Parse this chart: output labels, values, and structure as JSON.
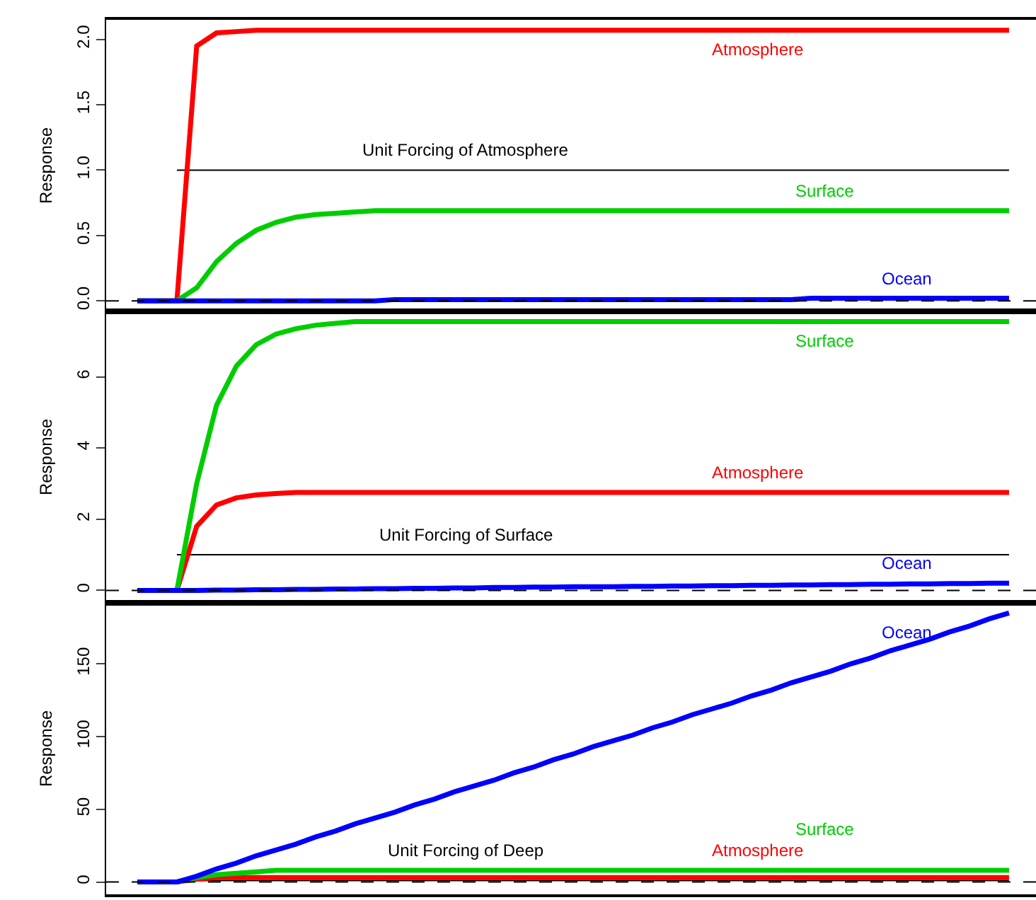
{
  "chart_data": [
    {
      "type": "line",
      "ylabel": "Response",
      "tick_labels": "y",
      "categories": [
        null,
        null,
        null,
        null,
        null,
        null,
        null,
        null,
        null,
        null,
        null,
        null,
        null,
        null,
        null,
        null,
        null,
        null,
        null,
        null,
        null,
        null,
        null,
        null,
        null,
        null,
        null,
        null,
        null,
        null,
        null,
        null,
        null,
        null,
        null,
        null,
        null,
        null,
        null,
        null,
        null,
        null,
        null,
        null,
        null
      ],
      "ylim": [
        -0.08,
        2.15
      ],
      "yticks": [
        {
          "value": 0,
          "label": "0.0"
        },
        {
          "value": 0.5,
          "label": "0.5"
        },
        {
          "value": 1,
          "label": "1.0"
        },
        {
          "value": 1.5,
          "label": "1.5"
        },
        {
          "value": 2,
          "label": "2.0"
        }
      ],
      "ref_lines": [
        {
          "axis": "y",
          "value": 0,
          "line_style": "dashed",
          "color": "#000000"
        }
      ],
      "series": [
        {
          "name": "Unit Forcing of Atmosphere",
          "color": "#000000",
          "values": [
            null,
            null,
            1,
            1,
            1,
            1,
            1,
            1,
            1,
            1,
            1,
            1,
            1,
            1,
            1,
            1,
            1,
            1,
            1,
            1,
            1,
            1,
            1,
            1,
            1,
            1,
            1,
            1,
            1,
            1,
            1,
            1,
            1,
            1,
            1,
            1,
            1,
            1,
            1,
            1,
            1,
            1,
            1,
            1,
            1
          ]
        },
        {
          "name": "Atmosphere",
          "color": "#ff0000",
          "values": [
            0,
            0,
            0,
            1.95,
            2.05,
            2.06,
            2.07,
            2.07,
            2.07,
            2.07,
            2.07,
            2.07,
            2.07,
            2.07,
            2.07,
            2.07,
            2.07,
            2.07,
            2.07,
            2.07,
            2.07,
            2.07,
            2.07,
            2.07,
            2.07,
            2.07,
            2.07,
            2.07,
            2.07,
            2.07,
            2.07,
            2.07,
            2.07,
            2.07,
            2.07,
            2.07,
            2.07,
            2.07,
            2.07,
            2.07,
            2.07,
            2.07,
            2.07,
            2.07,
            2.07
          ]
        },
        {
          "name": "Surface",
          "color": "#00cd00",
          "values": [
            0,
            0,
            0,
            0.1,
            0.3,
            0.44,
            0.54,
            0.6,
            0.64,
            0.66,
            0.67,
            0.68,
            0.69,
            0.69,
            0.69,
            0.69,
            0.69,
            0.69,
            0.69,
            0.69,
            0.69,
            0.69,
            0.69,
            0.69,
            0.69,
            0.69,
            0.69,
            0.69,
            0.69,
            0.69,
            0.69,
            0.69,
            0.69,
            0.69,
            0.69,
            0.69,
            0.69,
            0.69,
            0.69,
            0.69,
            0.69,
            0.69,
            0.69,
            0.69,
            0.69
          ]
        },
        {
          "name": "Ocean",
          "color": "#0000ff",
          "values": [
            0,
            0,
            0,
            0,
            0,
            0,
            0,
            0,
            0,
            0,
            0,
            0,
            0,
            0.01,
            0.01,
            0.01,
            0.01,
            0.01,
            0.01,
            0.01,
            0.01,
            0.01,
            0.01,
            0.01,
            0.01,
            0.01,
            0.01,
            0.01,
            0.01,
            0.01,
            0.01,
            0.01,
            0.01,
            0.01,
            0.02,
            0.02,
            0.02,
            0.02,
            0.02,
            0.02,
            0.02,
            0.02,
            0.02,
            0.02,
            0.02
          ]
        }
      ]
    },
    {
      "type": "line",
      "ylabel": "Response",
      "tick_labels": "y",
      "categories": [
        null,
        null,
        null,
        null,
        null,
        null,
        null,
        null,
        null,
        null,
        null,
        null,
        null,
        null,
        null,
        null,
        null,
        null,
        null,
        null,
        null,
        null,
        null,
        null,
        null,
        null,
        null,
        null,
        null,
        null,
        null,
        null,
        null,
        null,
        null,
        null,
        null,
        null,
        null,
        null,
        null,
        null,
        null,
        null,
        null
      ],
      "ylim": [
        -0.35,
        7.84
      ],
      "yticks": [
        0,
        2,
        4,
        6
      ],
      "ref_lines": [
        {
          "axis": "y",
          "value": 0,
          "line_style": "dashed",
          "color": "#000000"
        }
      ],
      "series": [
        {
          "name": "Unit Forcing of Surface",
          "color": "#000000",
          "values": [
            null,
            null,
            1,
            1,
            1,
            1,
            1,
            1,
            1,
            1,
            1,
            1,
            1,
            1,
            1,
            1,
            1,
            1,
            1,
            1,
            1,
            1,
            1,
            1,
            1,
            1,
            1,
            1,
            1,
            1,
            1,
            1,
            1,
            1,
            1,
            1,
            1,
            1,
            1,
            1,
            1,
            1,
            1,
            1,
            1
          ]
        },
        {
          "name": "Atmosphere",
          "color": "#ff0000",
          "values": [
            0,
            0,
            0,
            1.8,
            2.4,
            2.6,
            2.68,
            2.72,
            2.75,
            2.75,
            2.75,
            2.75,
            2.75,
            2.75,
            2.75,
            2.75,
            2.75,
            2.75,
            2.75,
            2.75,
            2.75,
            2.75,
            2.75,
            2.75,
            2.75,
            2.75,
            2.75,
            2.75,
            2.75,
            2.75,
            2.75,
            2.75,
            2.75,
            2.75,
            2.75,
            2.75,
            2.75,
            2.75,
            2.75,
            2.75,
            2.75,
            2.75,
            2.75,
            2.75,
            2.75
          ]
        },
        {
          "name": "Surface",
          "color": "#00cd00",
          "values": [
            0,
            0,
            0,
            3,
            5.2,
            6.3,
            6.9,
            7.2,
            7.35,
            7.45,
            7.5,
            7.55,
            7.55,
            7.55,
            7.55,
            7.55,
            7.55,
            7.55,
            7.55,
            7.55,
            7.55,
            7.55,
            7.55,
            7.55,
            7.55,
            7.55,
            7.55,
            7.55,
            7.55,
            7.55,
            7.55,
            7.55,
            7.55,
            7.55,
            7.55,
            7.55,
            7.55,
            7.55,
            7.55,
            7.55,
            7.55,
            7.55,
            7.55,
            7.55,
            7.55
          ]
        },
        {
          "name": "Ocean",
          "color": "#0000ff",
          "values": [
            0,
            0,
            0,
            0,
            0.01,
            0.01,
            0.02,
            0.02,
            0.03,
            0.03,
            0.04,
            0.04,
            0.05,
            0.05,
            0.06,
            0.06,
            0.07,
            0.07,
            0.08,
            0.08,
            0.09,
            0.09,
            0.1,
            0.1,
            0.1,
            0.11,
            0.11,
            0.12,
            0.12,
            0.13,
            0.13,
            0.14,
            0.14,
            0.15,
            0.15,
            0.16,
            0.16,
            0.17,
            0.17,
            0.18,
            0.18,
            0.19,
            0.19,
            0.2,
            0.2
          ]
        }
      ]
    },
    {
      "type": "line",
      "ylabel": "Response",
      "tick_labels": "y",
      "categories": [
        null,
        null,
        null,
        null,
        null,
        null,
        null,
        null,
        null,
        null,
        null,
        null,
        null,
        null,
        null,
        null,
        null,
        null,
        null,
        null,
        null,
        null,
        null,
        null,
        null,
        null,
        null,
        null,
        null,
        null,
        null,
        null,
        null,
        null,
        null,
        null,
        null,
        null,
        null,
        null,
        null,
        null,
        null,
        null,
        null
      ],
      "ylim": [
        -8.5,
        192
      ],
      "yticks": [
        0,
        50,
        100,
        150
      ],
      "ref_lines": [
        {
          "axis": "y",
          "value": 0,
          "line_style": "dashed",
          "color": "#000000"
        }
      ],
      "series": [
        {
          "name": "Unit Forcing of Deep",
          "color": "#000000",
          "values": [
            null,
            null,
            1,
            1,
            1,
            1,
            1,
            1,
            1,
            1,
            1,
            1,
            1,
            1,
            1,
            1,
            1,
            1,
            1,
            1,
            1,
            1,
            1,
            1,
            1,
            1,
            1,
            1,
            1,
            1,
            1,
            1,
            1,
            1,
            1,
            1,
            1,
            1,
            1,
            1,
            1,
            1,
            1,
            1,
            1
          ]
        },
        {
          "name": "Atmosphere",
          "color": "#ff0000",
          "values": [
            0,
            0,
            0,
            2,
            3,
            3,
            3,
            3,
            3,
            3,
            3,
            3,
            3,
            3,
            3,
            3,
            3,
            3,
            3,
            3,
            3,
            3,
            3,
            3,
            3,
            3,
            3,
            3,
            3,
            3,
            3,
            3,
            3,
            3,
            3,
            3,
            3,
            3,
            3,
            3,
            3,
            3,
            3,
            3,
            3
          ]
        },
        {
          "name": "Surface",
          "color": "#00cd00",
          "values": [
            null,
            null,
            0,
            3,
            5,
            6,
            7,
            8,
            8,
            8,
            8,
            8,
            8,
            8,
            8,
            8,
            8,
            8,
            8,
            8,
            8,
            8,
            8,
            8,
            8,
            8,
            8,
            8,
            8,
            8,
            8,
            8,
            8,
            8,
            8,
            8,
            8,
            8,
            8,
            8,
            8,
            8,
            8,
            8,
            8
          ]
        },
        {
          "name": "Ocean",
          "color": "#0000ff",
          "values": [
            0,
            0,
            0,
            4,
            9,
            13,
            18,
            22,
            26,
            31,
            35,
            40,
            44,
            48,
            53,
            57,
            62,
            66,
            70,
            75,
            79,
            84,
            88,
            93,
            97,
            101,
            106,
            110,
            115,
            119,
            123,
            128,
            132,
            137,
            141,
            145,
            150,
            154,
            159,
            163,
            167,
            172,
            176,
            181,
            185
          ]
        }
      ]
    }
  ]
}
